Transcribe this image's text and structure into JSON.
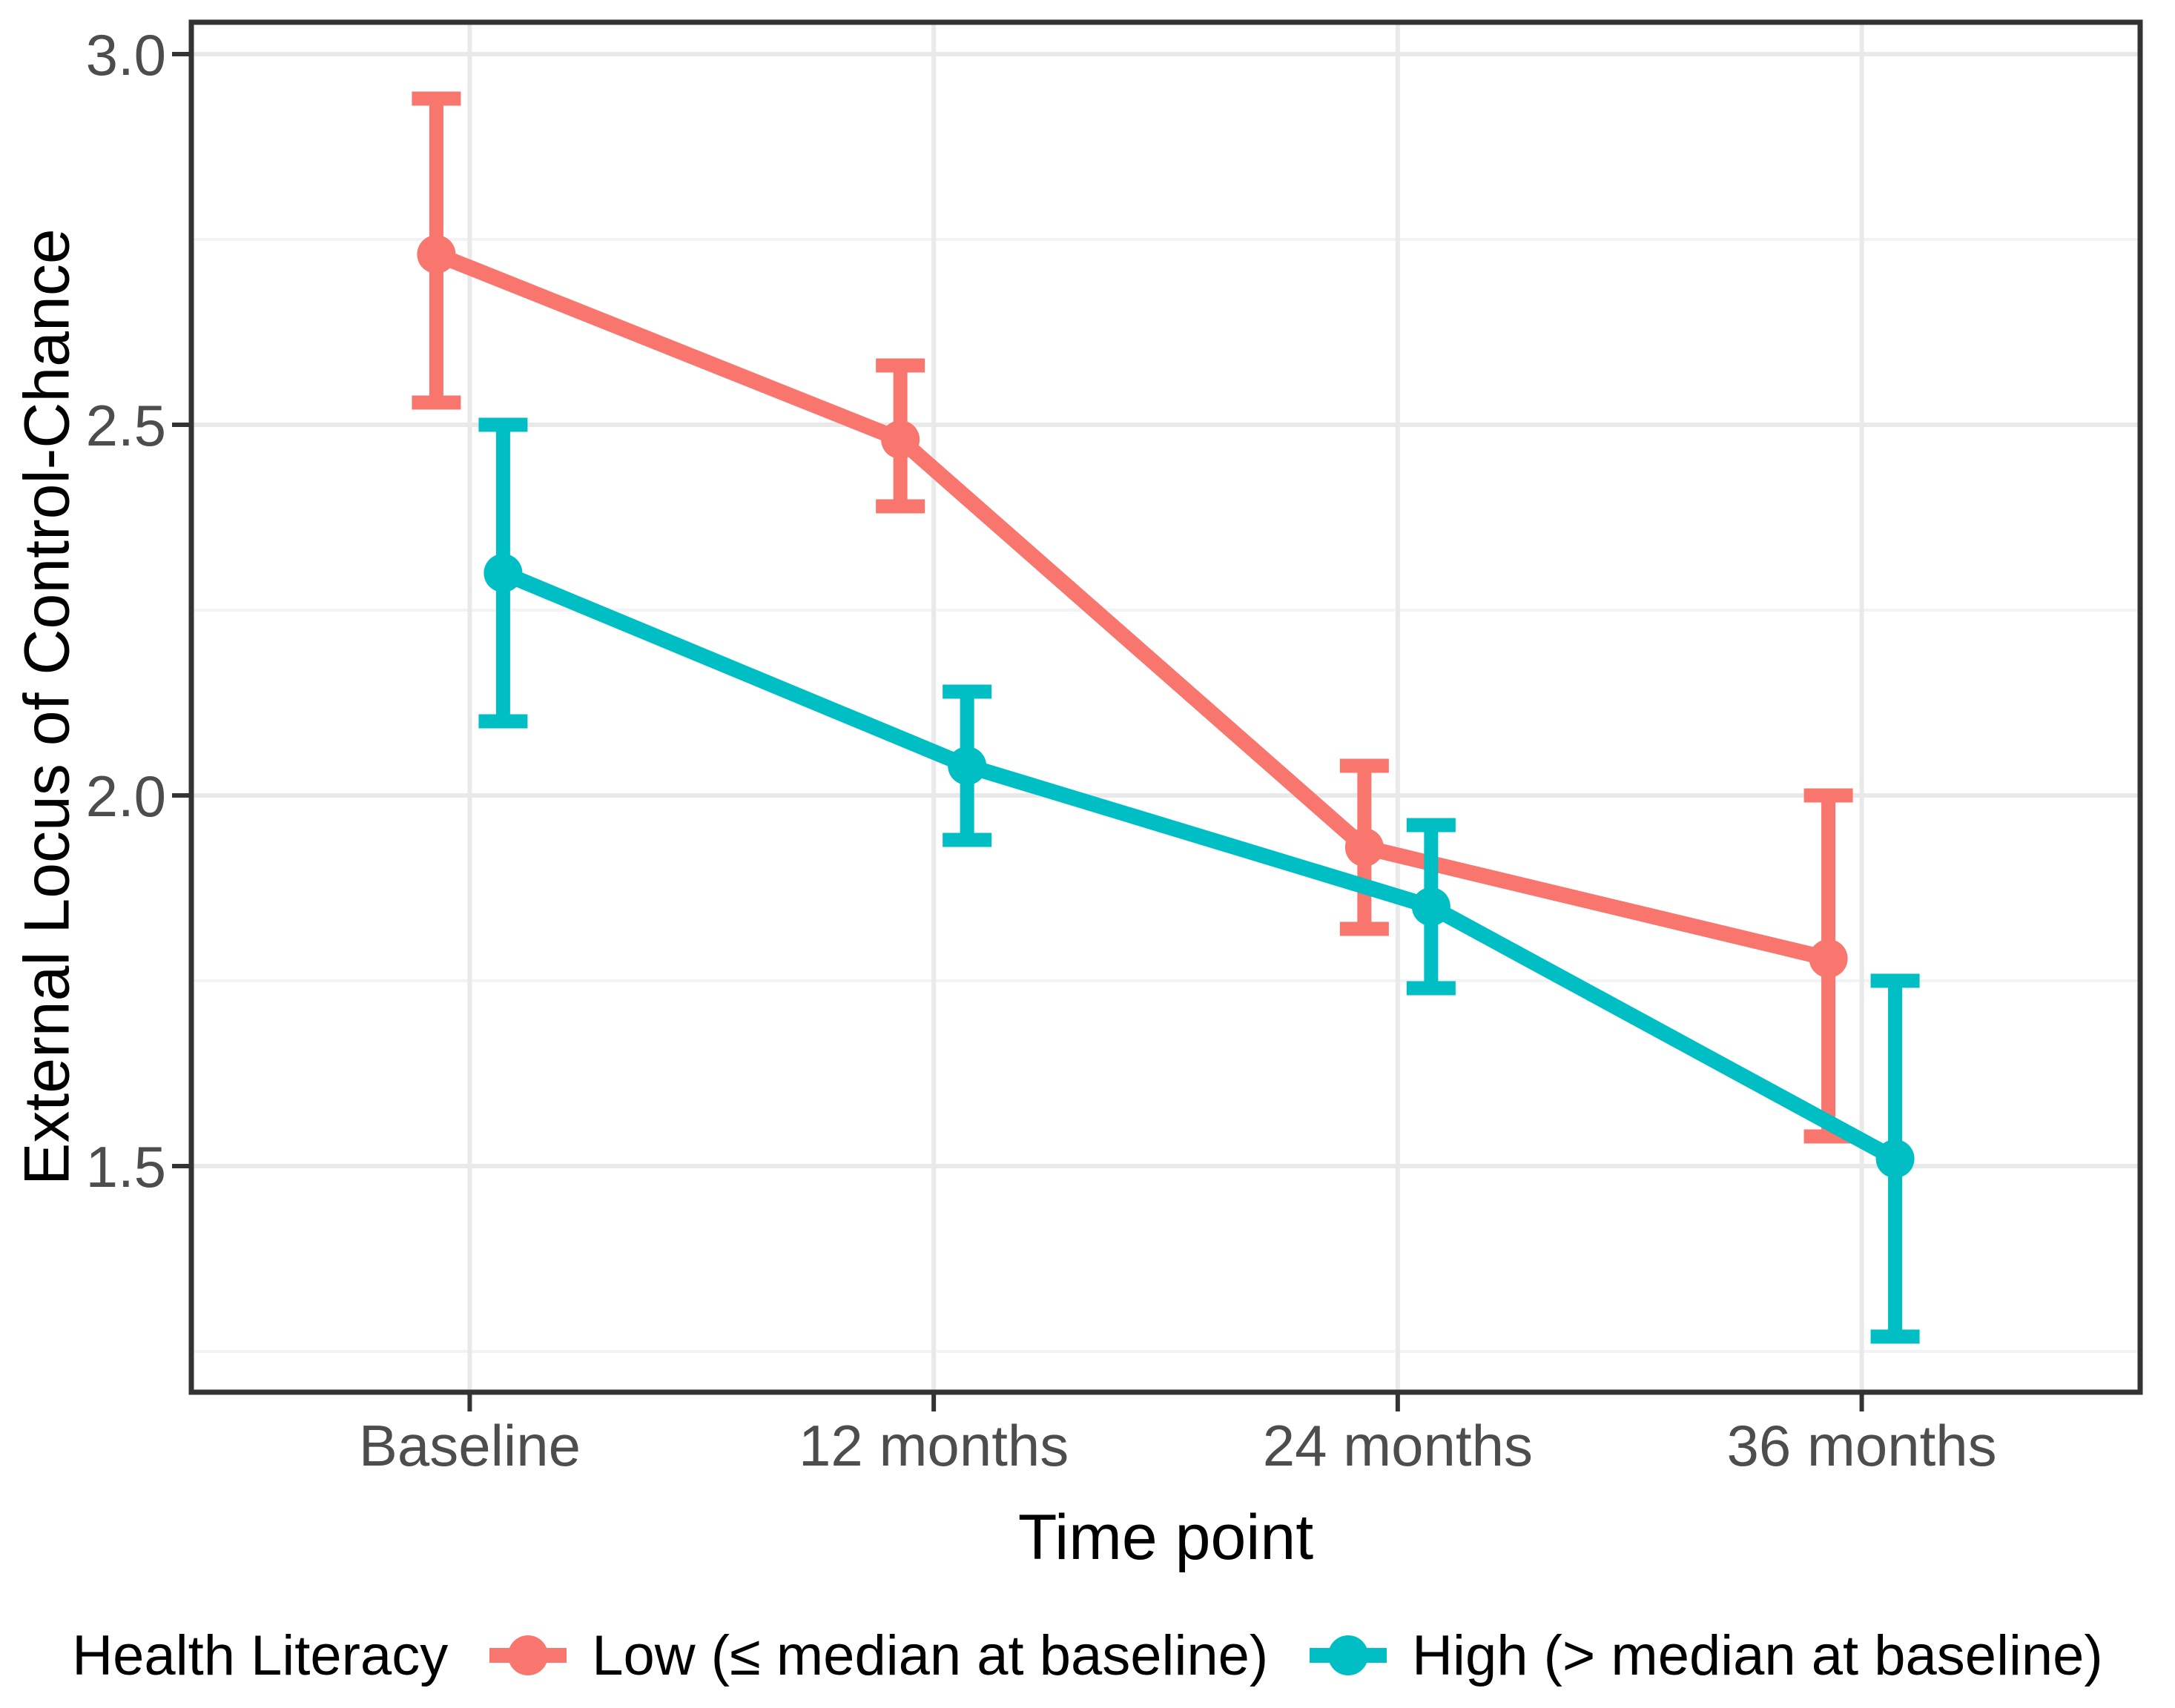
{
  "chart_data": {
    "type": "line",
    "title": "",
    "xlabel": "Time point",
    "ylabel": "External Locus of Control-Chance",
    "categories": [
      "Baseline",
      "12 months",
      "24 months",
      "36 months"
    ],
    "y_ticks": [
      1.5,
      2.0,
      2.5,
      3.0
    ],
    "y_tick_labels": [
      "1.5",
      "2.0",
      "2.5",
      "3.0"
    ],
    "ylim": [
      1.195,
      3.043
    ],
    "minor_grid_step": 0.25,
    "grid": {
      "major": true,
      "minor": true
    },
    "legend": {
      "title": "Health Literacy",
      "position": "bottom"
    },
    "series": [
      {
        "name": "Low (≤ median at baseline)",
        "color": "#F8766D",
        "values": [
          2.73,
          2.48,
          1.93,
          1.78
        ],
        "ci_low": [
          2.53,
          2.39,
          1.82,
          1.54
        ],
        "ci_high": [
          2.94,
          2.58,
          2.04,
          2.0
        ]
      },
      {
        "name": "High (> median at baseline)",
        "color": "#00BFC4",
        "values": [
          2.3,
          2.04,
          1.85,
          1.51
        ],
        "ci_low": [
          2.1,
          1.94,
          1.74,
          1.27
        ],
        "ci_high": [
          2.5,
          2.14,
          1.96,
          1.75
        ]
      }
    ],
    "colors": {
      "background": "#FFFFFF",
      "panel_background": "#FFFFFF",
      "grid_major": "#E9E9E9",
      "grid_minor": "#F3F3F3",
      "panel_border": "#333333",
      "tick": "#333333",
      "tick_label": "#4D4D4D",
      "axis_title": "#000000",
      "legend_text": "#000000"
    }
  }
}
